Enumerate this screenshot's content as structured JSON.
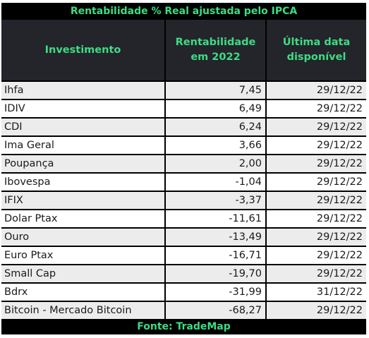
{
  "table": {
    "title": "Rentabilidade % Real ajustada pelo IPCA",
    "headers": {
      "investimento": "Investimento",
      "rentabilidade_line1": "Rentabilidade",
      "rentabilidade_line2": "em 2022",
      "data_line1": "Última data",
      "data_line2": "disponível"
    },
    "rows": [
      {
        "name": "Ihfa",
        "rent": "7,45",
        "date": "29/12/22"
      },
      {
        "name": "IDIV",
        "rent": "6,49",
        "date": "29/12/22"
      },
      {
        "name": "CDI",
        "rent": "6,24",
        "date": "29/12/22"
      },
      {
        "name": "Ima Geral",
        "rent": "3,66",
        "date": "29/12/22"
      },
      {
        "name": "Poupança",
        "rent": "2,00",
        "date": "29/12/22"
      },
      {
        "name": "Ibovespa",
        "rent": "-1,04",
        "date": "29/12/22"
      },
      {
        "name": "IFIX",
        "rent": "-3,37",
        "date": "29/12/22"
      },
      {
        "name": "Dolar Ptax",
        "rent": "-11,61",
        "date": "29/12/22"
      },
      {
        "name": "Ouro",
        "rent": "-13,49",
        "date": "29/12/22"
      },
      {
        "name": "Euro Ptax",
        "rent": "-16,71",
        "date": "29/12/22"
      },
      {
        "name": "Small Cap",
        "rent": "-19,70",
        "date": "29/12/22"
      },
      {
        "name": "Bdrx",
        "rent": "-31,99",
        "date": "31/12/22"
      },
      {
        "name": "Bitcoin - Mercado Bitcoin",
        "rent": "-68,27",
        "date": "29/12/22"
      }
    ],
    "footer": "Fonte: TradeMap"
  },
  "colors": {
    "accent": "#3ddc84",
    "header_bg": "#24242b",
    "row_shaded": "#ececec",
    "row_plain": "#ffffff",
    "frame": "#000000"
  }
}
